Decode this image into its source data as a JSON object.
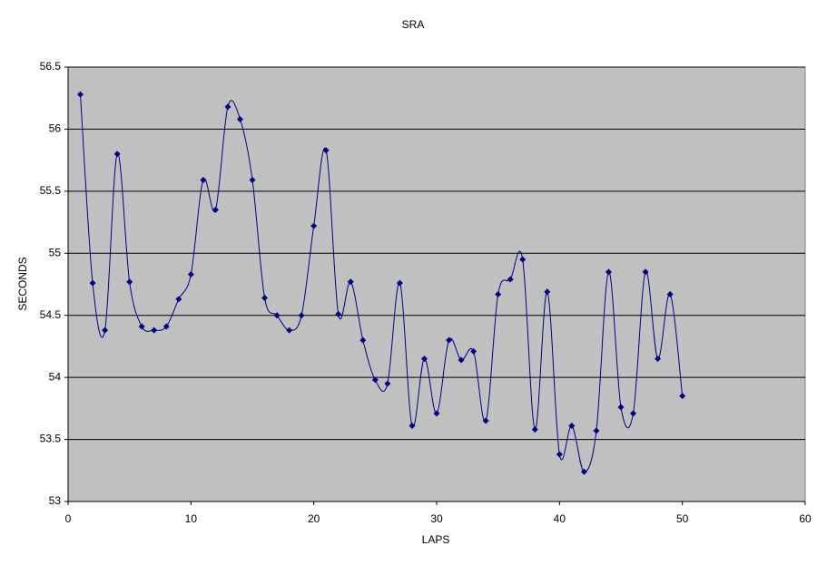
{
  "chart_data": {
    "type": "scatter",
    "title": "SRA",
    "x_label": "LAPS",
    "y_label": "SECONDS",
    "x": [
      1,
      2,
      3,
      4,
      5,
      6,
      7,
      8,
      9,
      10,
      11,
      12,
      13,
      14,
      15,
      16,
      17,
      18,
      19,
      20,
      21,
      22,
      23,
      24,
      25,
      26,
      27,
      28,
      29,
      30,
      31,
      32,
      33,
      34,
      35,
      36,
      37,
      38,
      39,
      40,
      41,
      42,
      43,
      44,
      45,
      46,
      47,
      48,
      49,
      50
    ],
    "values": [
      56.28,
      54.76,
      54.38,
      55.8,
      54.77,
      54.41,
      54.38,
      54.41,
      54.63,
      54.83,
      55.59,
      55.35,
      56.18,
      56.08,
      55.59,
      54.64,
      54.5,
      54.38,
      54.5,
      55.22,
      55.83,
      54.51,
      54.77,
      54.3,
      53.98,
      53.95,
      54.76,
      53.61,
      54.15,
      53.71,
      54.3,
      54.14,
      54.21,
      53.65,
      54.67,
      54.79,
      54.95,
      53.58,
      54.69,
      53.38,
      53.61,
      53.24,
      53.57,
      54.85,
      53.76,
      53.71,
      54.85,
      54.15,
      54.67,
      53.85
    ],
    "color": "#000080",
    "smooth": true,
    "xlim": [
      0,
      60
    ],
    "xticks": [
      0,
      10,
      20,
      30,
      40,
      50,
      60
    ],
    "ylim": [
      53,
      56.5
    ],
    "yticks": [
      53,
      53.5,
      54,
      54.5,
      55,
      55.5,
      56,
      56.5
    ],
    "grid": true
  }
}
